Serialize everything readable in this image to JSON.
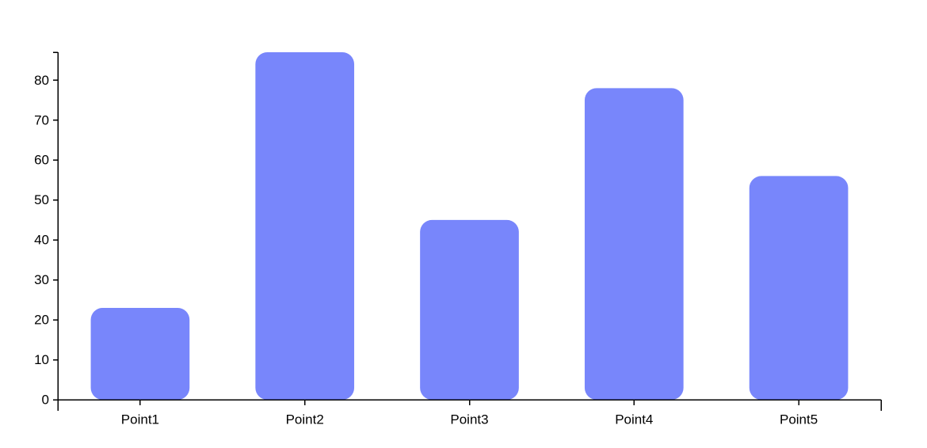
{
  "chart_data": {
    "type": "bar",
    "title": "",
    "xlabel": "",
    "ylabel": "",
    "categories": [
      "Point1",
      "Point2",
      "Point3",
      "Point4",
      "Point5"
    ],
    "values": [
      23,
      87,
      45,
      78,
      56
    ],
    "ylim": [
      0,
      87
    ],
    "yticks": [
      0,
      10,
      20,
      30,
      40,
      50,
      60,
      70,
      80
    ],
    "ytick_labels": [
      "0",
      "10",
      "20",
      "30",
      "40",
      "50",
      "60",
      "70",
      "80"
    ],
    "grid": false,
    "legend": "none",
    "bar_color": "#7886fb",
    "axis_color": "#000000"
  }
}
